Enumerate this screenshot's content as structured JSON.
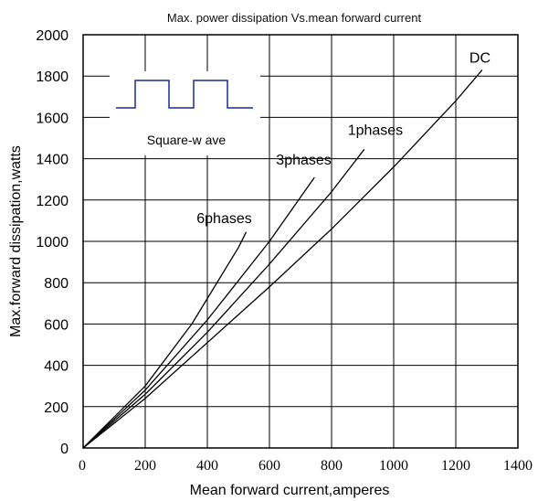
{
  "chart_data": {
    "type": "line",
    "title": "Max. power dissipation  Vs.mean forward current",
    "xlabel": "Mean forward  current,amperes",
    "ylabel": "Max.forward dissipation,watts",
    "xlim": [
      0,
      1400
    ],
    "ylim": [
      0,
      2000
    ],
    "x_ticks": [
      "0",
      "200",
      "400",
      "600",
      "800",
      "1000",
      "1200",
      "1400"
    ],
    "y_ticks": [
      "0",
      "200",
      "400",
      "600",
      "800",
      "1000",
      "1200",
      "1400",
      "1600",
      "1800",
      "2000"
    ],
    "grid": true,
    "inset_label": "Square-w ave",
    "series": [
      {
        "name": "DC",
        "x": [
          0,
          200,
          400,
          600,
          800,
          1000,
          1200,
          1285
        ],
        "y": [
          0,
          240,
          510,
          780,
          1060,
          1360,
          1680,
          1830
        ]
      },
      {
        "name": "1phases",
        "x": [
          0,
          200,
          400,
          600,
          800,
          905
        ],
        "y": [
          0,
          260,
          560,
          890,
          1240,
          1445
        ]
      },
      {
        "name": "3phases",
        "x": [
          0,
          200,
          400,
          600,
          745
        ],
        "y": [
          0,
          280,
          620,
          1000,
          1310
        ]
      },
      {
        "name": "6phases",
        "x": [
          0,
          200,
          350,
          500,
          525
        ],
        "y": [
          0,
          300,
          600,
          970,
          1045
        ]
      }
    ]
  }
}
